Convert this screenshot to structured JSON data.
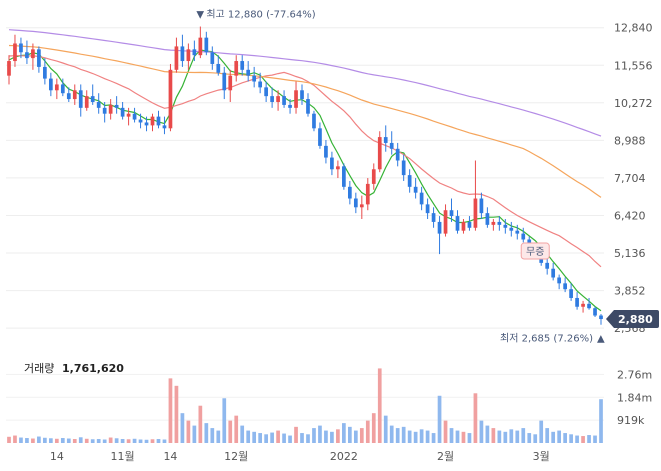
{
  "chart_data": {
    "type": "candlestick",
    "price_axis": {
      "ticks": [
        "12,840",
        "11,556",
        "10,272",
        "8,988",
        "7,704",
        "6,420",
        "5,136",
        "3,852",
        "2,568"
      ],
      "tick_values": [
        12840,
        11556,
        10272,
        8988,
        7704,
        6420,
        5136,
        3852,
        2568
      ],
      "ylim": [
        2300,
        13650
      ]
    },
    "x_axis": {
      "labels": [
        "14",
        "11월",
        "14",
        "12월",
        "2022",
        "2월",
        "3월"
      ],
      "label_index": [
        8,
        19,
        27,
        38,
        56,
        73,
        89
      ]
    },
    "high_marker": {
      "text": "최고 12,880 (-77.64%)",
      "value": 12880,
      "index": 32
    },
    "low_marker": {
      "text": "최저 2,685 (7.26%)",
      "value": 2685,
      "index": 99
    },
    "current_price": {
      "text": "2,880",
      "value": 2880
    },
    "event_badge": {
      "text": "무증",
      "index": 88
    },
    "candles": [
      [
        11200,
        11900,
        10900,
        11700
      ],
      [
        11700,
        12600,
        11500,
        12300
      ],
      [
        12300,
        12500,
        11800,
        12000
      ],
      [
        12000,
        12400,
        11600,
        11800
      ],
      [
        11800,
        12300,
        11400,
        12100
      ],
      [
        12100,
        12200,
        11300,
        11500
      ],
      [
        11500,
        11800,
        10900,
        11100
      ],
      [
        11100,
        11300,
        10500,
        10700
      ],
      [
        10700,
        11100,
        10400,
        10900
      ],
      [
        10900,
        11100,
        10500,
        10600
      ],
      [
        10600,
        10800,
        10300,
        10400
      ],
      [
        10400,
        10900,
        10200,
        10700
      ],
      [
        10700,
        10900,
        9800,
        10100
      ],
      [
        10100,
        10700,
        10000,
        10500
      ],
      [
        10500,
        10900,
        10200,
        10300
      ],
      [
        10300,
        10600,
        9900,
        10100
      ],
      [
        10100,
        10300,
        9600,
        9900
      ],
      [
        9900,
        10400,
        9700,
        10200
      ],
      [
        10200,
        10500,
        9900,
        10100
      ],
      [
        10100,
        10300,
        9700,
        9800
      ],
      [
        9800,
        10100,
        9500,
        9900
      ],
      [
        9900,
        10100,
        9600,
        9700
      ],
      [
        9700,
        9900,
        9400,
        9600
      ],
      [
        9600,
        9800,
        9300,
        9500
      ],
      [
        9500,
        9900,
        9300,
        9800
      ],
      [
        9800,
        10000,
        9400,
        9500
      ],
      [
        9500,
        9800,
        9200,
        9400
      ],
      [
        9400,
        11600,
        9300,
        11400
      ],
      [
        11400,
        12500,
        11300,
        12200
      ],
      [
        12200,
        12600,
        11500,
        11700
      ],
      [
        11700,
        12300,
        11400,
        12100
      ],
      [
        12100,
        12400,
        11700,
        11900
      ],
      [
        11900,
        12880,
        11800,
        12500
      ],
      [
        12500,
        12700,
        11900,
        12000
      ],
      [
        12000,
        12200,
        11400,
        11600
      ],
      [
        11600,
        11900,
        11200,
        11300
      ],
      [
        11300,
        11500,
        10400,
        10700
      ],
      [
        10700,
        11400,
        10300,
        11200
      ],
      [
        11200,
        11900,
        11000,
        11700
      ],
      [
        11700,
        11900,
        11200,
        11400
      ],
      [
        11400,
        11700,
        11000,
        11200
      ],
      [
        11200,
        11500,
        10800,
        11000
      ],
      [
        11000,
        11300,
        10600,
        10800
      ],
      [
        10800,
        11000,
        10300,
        10500
      ],
      [
        10500,
        10800,
        10100,
        10300
      ],
      [
        10300,
        10700,
        10000,
        10500
      ],
      [
        10500,
        10700,
        10100,
        10200
      ],
      [
        10200,
        10400,
        9900,
        10100
      ],
      [
        10100,
        11000,
        9900,
        10700
      ],
      [
        10700,
        10900,
        10200,
        10400
      ],
      [
        10400,
        10600,
        9800,
        9900
      ],
      [
        9900,
        10000,
        9300,
        9400
      ],
      [
        9400,
        9600,
        8700,
        8800
      ],
      [
        8800,
        9000,
        8200,
        8400
      ],
      [
        8400,
        8600,
        7800,
        8000
      ],
      [
        8000,
        8300,
        7700,
        8100
      ],
      [
        8100,
        8200,
        7300,
        7400
      ],
      [
        7400,
        7600,
        6800,
        7000
      ],
      [
        7000,
        7200,
        6500,
        6700
      ],
      [
        6700,
        7100,
        6300,
        6800
      ],
      [
        6800,
        7700,
        6600,
        7500
      ],
      [
        7500,
        8200,
        7300,
        8000
      ],
      [
        8000,
        9300,
        7900,
        9100
      ],
      [
        9100,
        9500,
        8600,
        8900
      ],
      [
        8900,
        9300,
        8500,
        8700
      ],
      [
        8700,
        8900,
        8100,
        8300
      ],
      [
        8300,
        8500,
        7600,
        7800
      ],
      [
        7800,
        8000,
        7200,
        7400
      ],
      [
        7400,
        7700,
        7000,
        7200
      ],
      [
        7200,
        7400,
        6600,
        6800
      ],
      [
        6800,
        7000,
        6300,
        6500
      ],
      [
        6500,
        6700,
        6000,
        6200
      ],
      [
        6200,
        6400,
        5100,
        5800
      ],
      [
        5800,
        6800,
        5700,
        6600
      ],
      [
        6600,
        7000,
        6200,
        6400
      ],
      [
        6400,
        6600,
        5800,
        5900
      ],
      [
        5900,
        6300,
        5800,
        6200
      ],
      [
        6200,
        6400,
        5900,
        6000
      ],
      [
        6000,
        8300,
        5900,
        7000
      ],
      [
        7000,
        7200,
        6300,
        6500
      ],
      [
        6500,
        6700,
        6000,
        6100
      ],
      [
        6100,
        6300,
        5900,
        6200
      ],
      [
        6200,
        6400,
        5900,
        6100
      ],
      [
        6100,
        6300,
        5800,
        6000
      ],
      [
        6000,
        6200,
        5700,
        5900
      ],
      [
        5900,
        6100,
        5600,
        5800
      ],
      [
        5800,
        6000,
        5500,
        5600
      ],
      [
        5600,
        5700,
        5200,
        5300
      ],
      [
        5300,
        5500,
        5000,
        5200
      ],
      [
        5200,
        5300,
        4700,
        4800
      ],
      [
        4800,
        5000,
        4400,
        4600
      ],
      [
        4600,
        4800,
        4200,
        4300
      ],
      [
        4300,
        4400,
        3900,
        4100
      ],
      [
        4100,
        4300,
        3800,
        3900
      ],
      [
        3900,
        4100,
        3500,
        3600
      ],
      [
        3600,
        3800,
        3200,
        3300
      ],
      [
        3300,
        3500,
        3100,
        3400
      ],
      [
        3400,
        3600,
        3200,
        3250
      ],
      [
        3250,
        3300,
        2950,
        3000
      ],
      [
        3000,
        3050,
        2685,
        2880
      ]
    ],
    "volume": {
      "label": "거래량",
      "value_text": "1,761,620",
      "ticks": [
        "2.76m",
        "1.84m",
        "919k"
      ],
      "tick_values": [
        2760000,
        1840000,
        919000
      ],
      "ylim": [
        0,
        3500000
      ],
      "values": [
        250000,
        300000,
        220000,
        200000,
        180000,
        260000,
        210000,
        190000,
        170000,
        200000,
        180000,
        160000,
        230000,
        170000,
        150000,
        160000,
        140000,
        220000,
        190000,
        160000,
        150000,
        170000,
        140000,
        130000,
        150000,
        160000,
        140000,
        2600000,
        2300000,
        1200000,
        900000,
        700000,
        1500000,
        800000,
        600000,
        500000,
        1800000,
        900000,
        1100000,
        700000,
        500000,
        450000,
        400000,
        350000,
        420000,
        500000,
        380000,
        300000,
        650000,
        400000,
        350000,
        600000,
        700000,
        500000,
        450000,
        550000,
        800000,
        650000,
        500000,
        600000,
        900000,
        1200000,
        3000000,
        1100000,
        700000,
        600000,
        650000,
        500000,
        450000,
        550000,
        500000,
        400000,
        1900000,
        900000,
        600000,
        500000,
        450000,
        400000,
        2000000,
        900000,
        700000,
        600000,
        500000,
        450000,
        550000,
        500000,
        600000,
        400000,
        350000,
        900000,
        600000,
        450000,
        500000,
        400000,
        350000,
        300000,
        280000,
        320000,
        300000,
        1761620
      ]
    },
    "colors": {
      "up": "#e84a4a",
      "down": "#2f7be0",
      "vol_up": "#f0a0a0",
      "vol_down": "#8fb8ee",
      "ma5": "#36b336",
      "ma20": "#f08282",
      "ma60": "#f5a55c",
      "ma120": "#b48ce6",
      "tag_bg": "#3d4a66"
    }
  }
}
